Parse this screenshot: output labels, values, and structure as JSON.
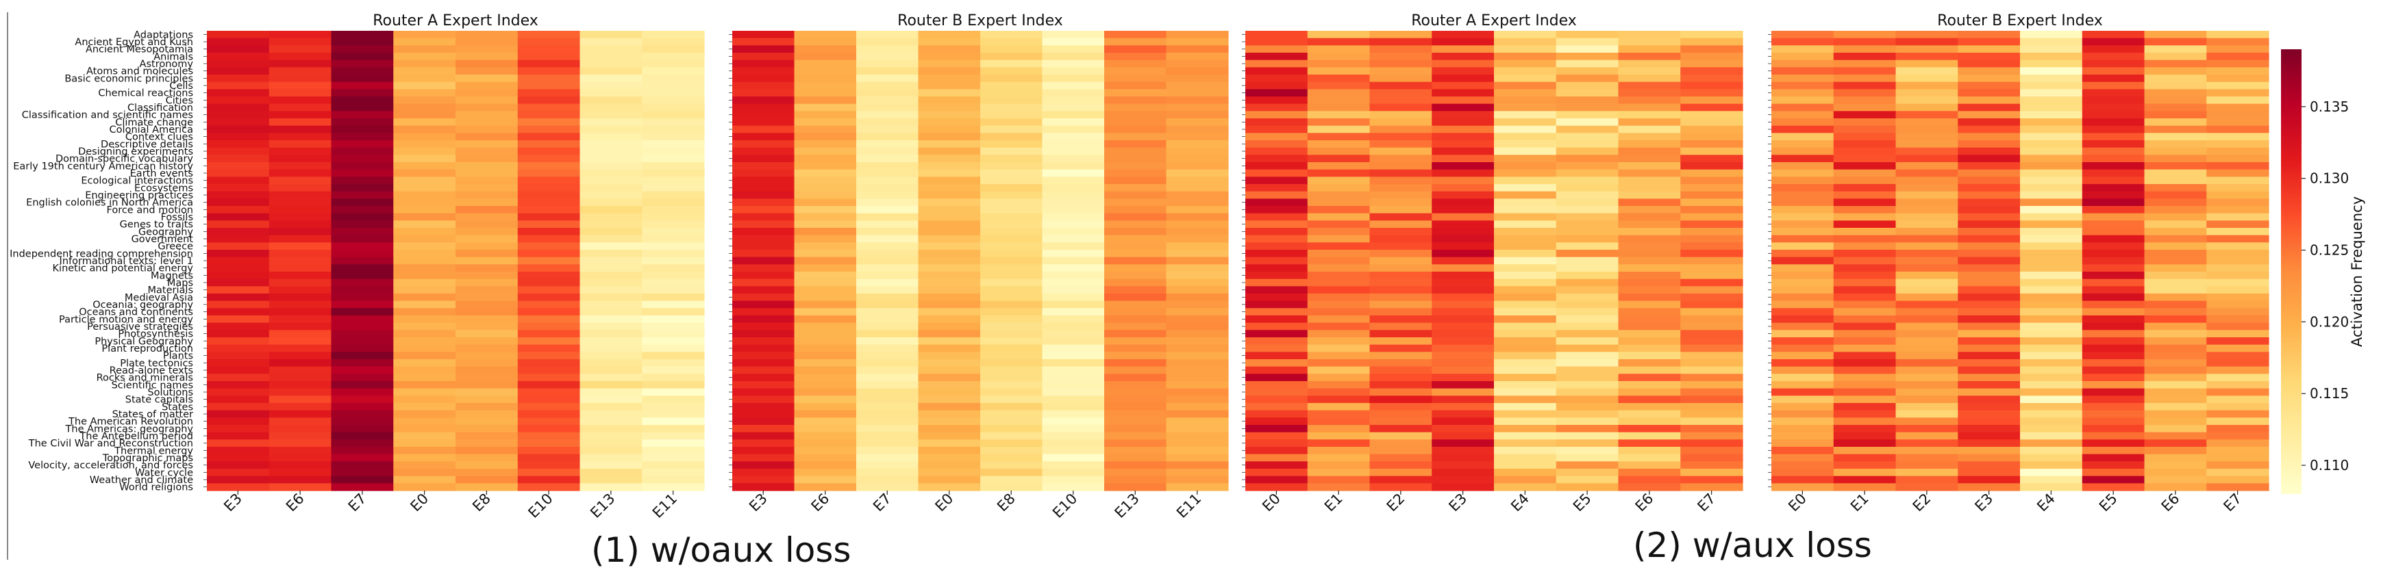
{
  "captions": [
    "(1) w/oaux loss",
    "(2) w/aux loss"
  ],
  "colorbar": {
    "label": "Activation Frequency",
    "min": 0.108,
    "max": 0.139,
    "ticks": [
      0.11,
      0.115,
      0.12,
      0.125,
      0.13,
      0.135
    ],
    "tick_labels": [
      "0.110",
      "0.115",
      "0.120",
      "0.125",
      "0.130",
      "0.135"
    ],
    "colormap": "YlOrRd",
    "stops": [
      "#ffffcc",
      "#ffeda0",
      "#fed976",
      "#feb24c",
      "#fd8d3c",
      "#fc4e2a",
      "#e31a1c",
      "#bd0026",
      "#800026"
    ]
  },
  "chart_data": [
    {
      "type": "heatmap",
      "title": "Router A Expert Index",
      "x": [
        "E3",
        "E6",
        "E7",
        "E0",
        "E8",
        "E10",
        "E13",
        "E11"
      ],
      "col_means": [
        0.131,
        0.13,
        0.137,
        0.12,
        0.121,
        0.127,
        0.112,
        0.111
      ],
      "row_variation": 0.0025,
      "grid": false
    },
    {
      "type": "heatmap",
      "title": "Router B Expert Index",
      "x": [
        "E3",
        "E6",
        "E7",
        "E0",
        "E8",
        "E10",
        "E13",
        "E11"
      ],
      "col_means": [
        0.131,
        0.12,
        0.112,
        0.119,
        0.115,
        0.111,
        0.123,
        0.121
      ],
      "row_variation": 0.0025,
      "grid": false
    },
    {
      "type": "heatmap",
      "title": "Router A Expert Index",
      "x": [
        "E0",
        "E1",
        "E2",
        "E3",
        "E4",
        "E5",
        "E6",
        "E7"
      ],
      "col_means": [
        0.13,
        0.124,
        0.125,
        0.129,
        0.117,
        0.117,
        0.121,
        0.123
      ],
      "row_variation": 0.006,
      "grid": false
    },
    {
      "type": "heatmap",
      "title": "Router B Expert Index",
      "x": [
        "E0",
        "E1",
        "E2",
        "E3",
        "E4",
        "E5",
        "E6",
        "E7"
      ],
      "col_means": [
        0.124,
        0.127,
        0.122,
        0.126,
        0.115,
        0.129,
        0.121,
        0.121
      ],
      "row_variation": 0.006,
      "grid": false
    }
  ],
  "y_tick_labels": [
    "Adaptations",
    "Ancient Egypt and Kush",
    "Ancient Mesopotamia",
    "Animals",
    "Astronomy",
    "Atoms and molecules",
    "Basic economic principles",
    "Cells",
    "Chemical reactions",
    "Cities",
    "Classification",
    "Classification and scientific names",
    "Climate change",
    "Colonial America",
    "Context clues",
    "Descriptive details",
    "Designing experiments",
    "Domain-specific vocabulary",
    "Early 19th century American history",
    "Earth events",
    "Ecological interactions",
    "Ecosystems",
    "Engineering practices",
    "English colonies in North America",
    "Force and motion",
    "Fossils",
    "Genes to traits",
    "Geography",
    "Government",
    "Greece",
    "Independent reading comprehension",
    "Informational texts: level 1",
    "Kinetic and potential energy",
    "Magnets",
    "Maps",
    "Materials",
    "Medieval Asia",
    "Oceania: geography",
    "Oceans and continents",
    "Particle motion and energy",
    "Persuasive strategies",
    "Photosynthesis",
    "Physical Geography",
    "Plant reproduction",
    "Plants",
    "Plate tectonics",
    "Read-alone texts",
    "Rocks and minerals",
    "Scientific names",
    "Solutions",
    "State capitals",
    "States",
    "States of matter",
    "The American Revolution",
    "The Americas: geography",
    "The Antebellum period",
    "The Civil War and Reconstruction",
    "Thermal energy",
    "Topographic maps",
    "Velocity, acceleration, and forces",
    "Water cycle",
    "Weather and climate",
    "World religions"
  ],
  "y_tick_labels_shown": [
    "Adaptations",
    "Ancient Egypt and Kush",
    "Ancient Mesopotamia",
    "Animals",
    "Astronomy",
    "Atoms and molecules",
    "Basic economic principles",
    "Cells",
    "Chemical reactions",
    "Cities",
    "Classification",
    "Classification and scientific names",
    "Climate change",
    "Colonial America",
    "Context clues",
    "Descriptive details",
    "Designing experiments",
    "Domain-specific vocabulary",
    "Early 19th century American history",
    "Earth events",
    "Ecological interactions",
    "Ecosystems",
    "Engineering practices",
    "English colonies in North America",
    "Force and motion",
    "Fossils",
    "Genes to traits",
    "Geography",
    "Government",
    "Greece",
    "Independent reading comprehension",
    "Informational texts: level 1",
    "Kinetic and potential energy",
    "Magnets",
    "Maps",
    "Materials",
    "Medieval Asia",
    "Oceania: geography",
    "Oceans and continents",
    "Particle motion and energy",
    "Persuasive strategies",
    "Photosynthesis",
    "Physical Geography",
    "Plant reproduction",
    "Plants",
    "Plate tectonics",
    "Read-alone texts",
    "Rocks and minerals",
    "Scientific names",
    "Solutions",
    "State capitals",
    "States",
    "States of matter",
    "The American Revolution",
    "The Americas: geography",
    "The Antebellum period",
    "The Civil War and Reconstruction",
    "Thermal energy",
    "Topographic maps",
    "Velocity, acceleration, and forces",
    "Water cycle",
    "Weather and climate",
    "World religions"
  ]
}
